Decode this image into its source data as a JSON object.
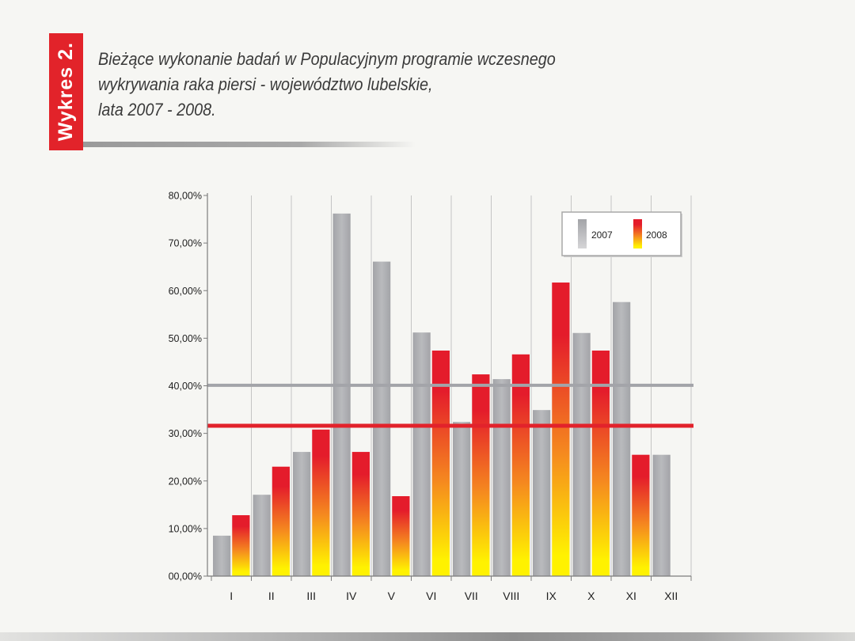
{
  "figure_label": "Wykres 2.",
  "colors": {
    "label_red": "#e2232a",
    "bar_2007": "#a3a4a8",
    "bar_2007_highlight": "#b9babd",
    "legend_2007_light": "#d5d5d7",
    "bar_2008_top": "#e41c2b",
    "bar_2008_mid": "#f5891f",
    "bar_2008_bottom": "#fff200"
  },
  "chart_data": {
    "type": "bar",
    "title": [
      "Bieżące wykonanie badań w Populacyjnym programie wczesnego",
      "wykrywania raka piersi - województwo lubelskie,",
      "lata 2007 - 2008."
    ],
    "xlabel": "",
    "ylabel": "",
    "categories": [
      "I",
      "II",
      "III",
      "IV",
      "V",
      "VI",
      "VII",
      "VIII",
      "IX",
      "X",
      "XI",
      "XII"
    ],
    "series": [
      {
        "name": "2007",
        "values": [
          8.5,
          17.1,
          26.1,
          76.2,
          66.1,
          51.2,
          32.4,
          41.4,
          34.9,
          51.1,
          57.6,
          25.5
        ]
      },
      {
        "name": "2008",
        "values": [
          12.8,
          23.0,
          30.8,
          26.1,
          16.8,
          47.4,
          42.4,
          46.6,
          61.7,
          47.4,
          25.5,
          null
        ]
      }
    ],
    "ylim": [
      0,
      80
    ],
    "y_ticks": [
      0,
      10,
      20,
      30,
      40,
      50,
      60,
      70,
      80
    ],
    "y_tick_labels": [
      "00,00%",
      "10,00%",
      "20,00%",
      "30,00%",
      "40,00%",
      "50,00%",
      "60,00%",
      "70,00%",
      "80,00%"
    ],
    "reference_lines": [
      {
        "value": 40.1,
        "color": "#a3a4a9"
      },
      {
        "value": 31.6,
        "color": "#e2222b"
      }
    ],
    "grid": {
      "vertical": true,
      "horizontal": false
    }
  }
}
